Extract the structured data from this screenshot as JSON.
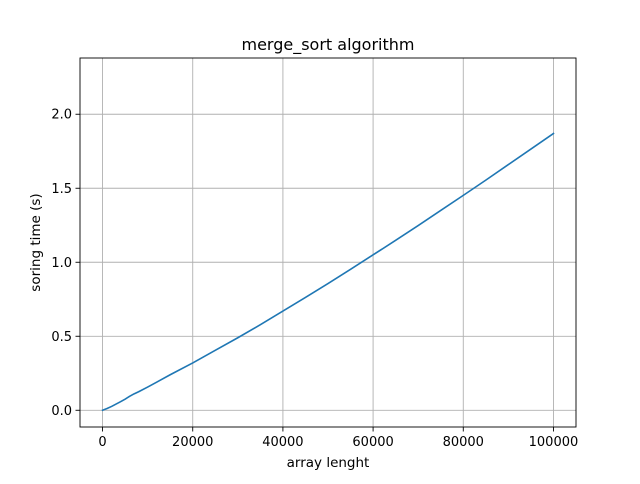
{
  "chart_data": {
    "type": "line",
    "title": "merge_sort algorithm",
    "xlabel": "array lenght",
    "ylabel": "soring time (s)",
    "xlim": [
      -5000,
      105000
    ],
    "ylim": [
      -0.113,
      2.38
    ],
    "xticks": [
      0,
      20000,
      40000,
      60000,
      80000,
      100000
    ],
    "xtick_labels": [
      "0",
      "20000",
      "40000",
      "60000",
      "80000",
      "100000"
    ],
    "yticks": [
      0.0,
      0.5,
      1.0,
      1.5,
      2.0
    ],
    "ytick_labels": [
      "0.0",
      "0.5",
      "1.0",
      "1.5",
      "2.0"
    ],
    "grid": true,
    "line_color": "#1f77b4",
    "series": [
      {
        "x": [
          0,
          1000,
          2000,
          3000,
          4000,
          5000,
          6000,
          7000,
          8000,
          10000,
          12000,
          15000,
          20000,
          25000,
          30000,
          35000,
          40000,
          45000,
          50000,
          55000,
          60000,
          65000,
          70000,
          75000,
          80000,
          85000,
          90000,
          95000,
          100000
        ],
        "y": [
          0.0,
          0.012,
          0.026,
          0.042,
          0.058,
          0.075,
          0.094,
          0.111,
          0.125,
          0.157,
          0.19,
          0.24,
          0.32,
          0.405,
          0.49,
          0.578,
          0.67,
          0.762,
          0.856,
          0.952,
          1.05,
          1.148,
          1.248,
          1.35,
          1.452,
          1.555,
          1.66,
          1.765,
          1.87
        ]
      }
    ]
  }
}
